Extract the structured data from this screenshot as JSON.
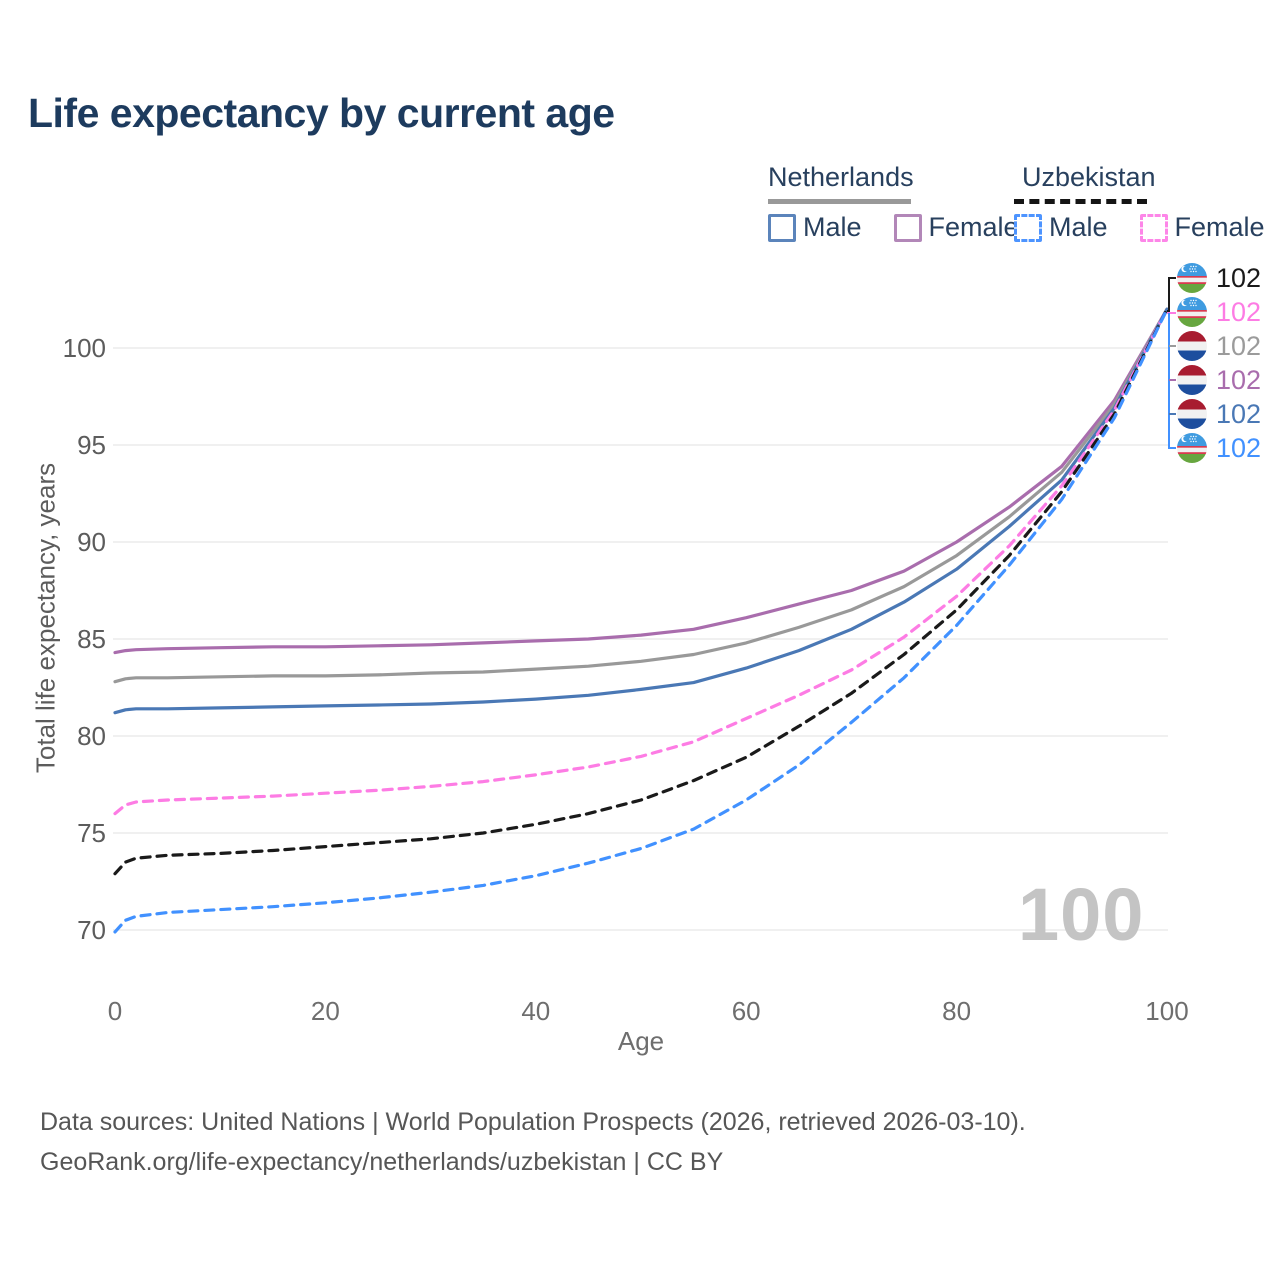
{
  "title": "Life expectancy by current age",
  "legend": {
    "groups": [
      {
        "name": "Netherlands",
        "line_style": "solid",
        "line_color": "#999999",
        "items": [
          {
            "label": "Male",
            "color": "#5b84bb",
            "style": "solid"
          },
          {
            "label": "Female",
            "color": "#b287b8",
            "style": "solid"
          }
        ]
      },
      {
        "name": "Uzbekistan",
        "line_style": "dashed",
        "line_color": "#151515",
        "items": [
          {
            "label": "Male",
            "color": "#4d94ff",
            "style": "dashed"
          },
          {
            "label": "Female",
            "color": "#fd86e8",
            "style": "dashed"
          }
        ]
      }
    ]
  },
  "chart_data": {
    "type": "line",
    "title": "Life expectancy by current age",
    "xlabel": "Age",
    "ylabel": "Total life expectancy, years",
    "xlim": [
      0,
      100
    ],
    "ylim": [
      69,
      103
    ],
    "x_ticks": [
      0,
      20,
      40,
      60,
      80,
      100
    ],
    "y_ticks": [
      70,
      75,
      80,
      85,
      90,
      95,
      100
    ],
    "grid": "horizontal",
    "legend_position": "top-right",
    "ages": [
      0,
      1,
      2,
      5,
      10,
      15,
      20,
      25,
      30,
      35,
      40,
      45,
      50,
      55,
      60,
      65,
      70,
      75,
      80,
      85,
      90,
      95,
      100
    ],
    "series": [
      {
        "name": "Netherlands Female",
        "country": "Netherlands",
        "sex": "Female",
        "color": "#a96dad",
        "dash": false,
        "values": [
          84.3,
          84.4,
          84.45,
          84.5,
          84.55,
          84.6,
          84.6,
          84.65,
          84.7,
          84.8,
          84.9,
          85.0,
          85.2,
          85.5,
          86.1,
          86.8,
          87.5,
          88.5,
          90.0,
          91.8,
          93.9,
          97.3,
          102
        ]
      },
      {
        "name": "Netherlands",
        "country": "Netherlands",
        "sex": "All",
        "color": "#999999",
        "dash": false,
        "values": [
          82.8,
          82.95,
          83.0,
          83.0,
          83.05,
          83.1,
          83.1,
          83.15,
          83.25,
          83.3,
          83.45,
          83.6,
          83.85,
          84.2,
          84.8,
          85.6,
          86.5,
          87.7,
          89.3,
          91.3,
          93.6,
          97.1,
          102
        ]
      },
      {
        "name": "Netherlands Male",
        "country": "Netherlands",
        "sex": "Male",
        "color": "#4a78b5",
        "dash": false,
        "values": [
          81.2,
          81.35,
          81.4,
          81.4,
          81.45,
          81.5,
          81.55,
          81.6,
          81.65,
          81.75,
          81.9,
          82.1,
          82.4,
          82.75,
          83.5,
          84.4,
          85.5,
          86.9,
          88.6,
          90.8,
          93.2,
          96.9,
          102
        ]
      },
      {
        "name": "Uzbekistan Female",
        "country": "Uzbekistan",
        "sex": "Female",
        "color": "#fd7ce4",
        "dash": true,
        "values": [
          76.0,
          76.45,
          76.6,
          76.7,
          76.8,
          76.9,
          77.05,
          77.2,
          77.4,
          77.65,
          78.0,
          78.4,
          78.95,
          79.7,
          80.9,
          82.1,
          83.4,
          85.1,
          87.2,
          89.8,
          92.9,
          96.8,
          102
        ]
      },
      {
        "name": "Uzbekistan",
        "country": "Uzbekistan",
        "sex": "All",
        "color": "#1a1a1a",
        "dash": true,
        "values": [
          72.9,
          73.5,
          73.7,
          73.85,
          73.95,
          74.1,
          74.3,
          74.5,
          74.7,
          75.0,
          75.45,
          76.0,
          76.7,
          77.7,
          78.9,
          80.5,
          82.2,
          84.2,
          86.5,
          89.3,
          92.6,
          96.6,
          102
        ]
      },
      {
        "name": "Uzbekistan Male",
        "country": "Uzbekistan",
        "sex": "Male",
        "color": "#4191ff",
        "dash": true,
        "values": [
          69.9,
          70.5,
          70.7,
          70.9,
          71.05,
          71.2,
          71.4,
          71.65,
          71.95,
          72.3,
          72.8,
          73.45,
          74.2,
          75.2,
          76.7,
          78.5,
          80.7,
          83.0,
          85.7,
          88.8,
          92.2,
          96.4,
          102
        ]
      }
    ],
    "end_labels": [
      {
        "flag": "uz",
        "value": "102",
        "color": "#1a1a1a"
      },
      {
        "flag": "uz",
        "value": "102",
        "color": "#fd7ce4"
      },
      {
        "flag": "nl",
        "value": "102",
        "color": "#9b9b9b"
      },
      {
        "flag": "nl",
        "value": "102",
        "color": "#a96dad"
      },
      {
        "flag": "nl",
        "value": "102",
        "color": "#4a78b5"
      },
      {
        "flag": "uz",
        "value": "102",
        "color": "#4191ff"
      }
    ],
    "age_watermark": "100"
  },
  "flag_colors": {
    "nl": {
      "red": "#a81c30",
      "white": "#f1f1f1",
      "blue": "#1d4e9e"
    },
    "uz": {
      "blue": "#3f9be0",
      "red": "#d93a4f",
      "white": "#f1f1f1",
      "green": "#67a63f"
    }
  },
  "footer": {
    "line1": "Data sources: United Nations | World Population Prospects (2026, retrieved 2026-03-10).",
    "line2": "GeoRank.org/life-expectancy/netherlands/uzbekistan | CC BY"
  }
}
